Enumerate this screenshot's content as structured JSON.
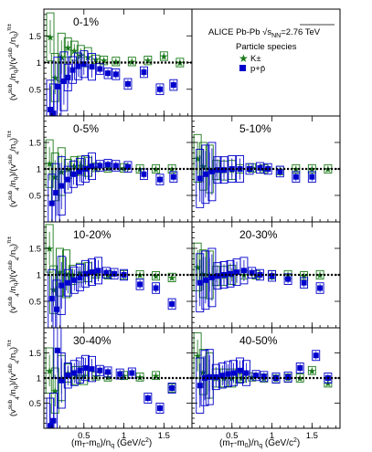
{
  "chart_data": {
    "type": "scatter",
    "figure_note": "ALICE Pb-Pb",
    "energy_label": "√s",
    "energy_sub": "NN",
    "energy_value": "=2.76 TeV",
    "legend_title": "Particle species",
    "series_names": [
      "K±",
      "p+p̄"
    ],
    "series_colors": {
      "kaon": "#1a7a1a",
      "proton": "#0000cc"
    },
    "xlabel": "(m_T-m_0)/n_q (GeV/c^2)",
    "xlabel_parts": {
      "a": "(m",
      "b": "T",
      "c": "-m",
      "d": "0",
      "e": ")/n",
      "f": "q",
      "g": " (GeV/c",
      "h": "2",
      "i": ")"
    },
    "ylabel": "(v4sub/nq)/(v4sub/nq)π±",
    "ylabel_parts": {
      "a": "(v",
      "b": "sub",
      "c": "4",
      "d": "/n",
      "e": "q",
      "f": ")/(v",
      "g": "sub",
      "h": "4",
      "i": "/n",
      "j": "q",
      "k": ")",
      "l": "π±"
    },
    "xlim": [
      0,
      1.85
    ],
    "ylim": [
      0,
      2.0
    ],
    "x_ticks": [
      0.5,
      1,
      1.5
    ],
    "x_tick_labels": [
      "0.5",
      "1",
      "1.5"
    ],
    "y_ticks": [
      0.5,
      1,
      1.5
    ],
    "y_tick_labels": [
      "0.5",
      "1",
      "1.5"
    ],
    "reference_line": 1,
    "panels": [
      {
        "label": "0-1%",
        "kaon": [
          [
            0.08,
            1.48
          ],
          [
            0.14,
            0.72
          ],
          [
            0.22,
            1.1
          ],
          [
            0.3,
            1.28
          ],
          [
            0.38,
            1.22
          ],
          [
            0.46,
            1.14
          ],
          [
            0.55,
            1.1
          ],
          [
            0.65,
            1.06
          ],
          [
            0.75,
            1.04
          ],
          [
            0.9,
            1.02
          ],
          [
            1.1,
            1.02
          ],
          [
            1.3,
            1.04
          ],
          [
            1.5,
            1.12
          ],
          [
            1.7,
            1.0
          ]
        ],
        "proton": [
          [
            0.08,
            0.12
          ],
          [
            0.12,
            0.05
          ],
          [
            0.17,
            0.55
          ],
          [
            0.25,
            0.65
          ],
          [
            0.3,
            0.72
          ],
          [
            0.36,
            0.86
          ],
          [
            0.43,
            0.93
          ],
          [
            0.5,
            0.97
          ],
          [
            0.6,
            0.92
          ],
          [
            0.7,
            0.88
          ],
          [
            0.8,
            0.8
          ],
          [
            0.9,
            0.78
          ],
          [
            1.05,
            0.6
          ],
          [
            1.25,
            0.82
          ],
          [
            1.45,
            0.5
          ],
          [
            1.62,
            0.58
          ]
        ]
      },
      {
        "label": "0-5%",
        "kaon": [
          [
            0.07,
            1.1
          ],
          [
            0.14,
            0.85
          ],
          [
            0.22,
            0.95
          ],
          [
            0.3,
            1.0
          ],
          [
            0.38,
            1.05
          ],
          [
            0.46,
            1.06
          ],
          [
            0.55,
            1.04
          ],
          [
            0.65,
            1.03
          ],
          [
            0.8,
            1.02
          ],
          [
            1.0,
            1.02
          ],
          [
            1.2,
            1.0
          ],
          [
            1.4,
            1.0
          ],
          [
            1.6,
            1.0
          ]
        ],
        "proton": [
          [
            0.1,
            0.35
          ],
          [
            0.15,
            0.55
          ],
          [
            0.22,
            0.68
          ],
          [
            0.3,
            0.8
          ],
          [
            0.37,
            0.9
          ],
          [
            0.45,
            0.95
          ],
          [
            0.52,
            1.0
          ],
          [
            0.6,
            1.05
          ],
          [
            0.7,
            1.06
          ],
          [
            0.8,
            1.08
          ],
          [
            0.9,
            1.06
          ],
          [
            1.05,
            1.04
          ],
          [
            1.25,
            0.9
          ],
          [
            1.45,
            0.8
          ],
          [
            1.62,
            0.85
          ]
        ]
      },
      {
        "label": "5-10%",
        "kaon": [
          [
            0.07,
            1.2
          ],
          [
            0.14,
            1.05
          ],
          [
            0.22,
            1.0
          ],
          [
            0.3,
            0.98
          ],
          [
            0.4,
            0.97
          ],
          [
            0.5,
            0.98
          ],
          [
            0.6,
            1.0
          ],
          [
            0.75,
            1.02
          ],
          [
            0.9,
            1.0
          ],
          [
            1.1,
            0.97
          ],
          [
            1.3,
            1.0
          ],
          [
            1.5,
            1.0
          ],
          [
            1.7,
            1.0
          ]
        ],
        "proton": [
          [
            0.1,
            0.82
          ],
          [
            0.17,
            0.9
          ],
          [
            0.25,
            0.95
          ],
          [
            0.32,
            0.98
          ],
          [
            0.4,
            0.98
          ],
          [
            0.5,
            1.0
          ],
          [
            0.6,
            1.0
          ],
          [
            0.72,
            1.0
          ],
          [
            0.85,
            1.02
          ],
          [
            0.95,
            1.0
          ],
          [
            1.1,
            0.95
          ],
          [
            1.3,
            0.85
          ],
          [
            1.5,
            0.85
          ]
        ]
      },
      {
        "label": "10-20%",
        "kaon": [
          [
            0.07,
            1.5
          ],
          [
            0.12,
            0.72
          ],
          [
            0.2,
            1.05
          ],
          [
            0.28,
            1.02
          ],
          [
            0.36,
            1.0
          ],
          [
            0.45,
            1.04
          ],
          [
            0.55,
            1.05
          ],
          [
            0.65,
            1.02
          ],
          [
            0.8,
            1.0
          ],
          [
            1.0,
            1.0
          ],
          [
            1.2,
            1.0
          ],
          [
            1.4,
            0.98
          ],
          [
            1.6,
            0.95
          ]
        ],
        "proton": [
          [
            0.1,
            0.55
          ],
          [
            0.16,
            0.35
          ],
          [
            0.22,
            0.8
          ],
          [
            0.3,
            0.85
          ],
          [
            0.38,
            0.9
          ],
          [
            0.45,
            0.95
          ],
          [
            0.52,
            1.02
          ],
          [
            0.6,
            1.05
          ],
          [
            0.68,
            1.08
          ],
          [
            0.78,
            1.04
          ],
          [
            0.88,
            1.02
          ],
          [
            1.0,
            1.0
          ],
          [
            1.2,
            0.82
          ],
          [
            1.4,
            0.75
          ],
          [
            1.6,
            0.45
          ]
        ]
      },
      {
        "label": "20-30%",
        "kaon": [
          [
            0.07,
            1.15
          ],
          [
            0.14,
            1.02
          ],
          [
            0.22,
            1.0
          ],
          [
            0.3,
            0.98
          ],
          [
            0.4,
            0.98
          ],
          [
            0.5,
            1.0
          ],
          [
            0.65,
            1.0
          ],
          [
            0.8,
            1.0
          ],
          [
            1.0,
            1.0
          ],
          [
            1.2,
            1.0
          ],
          [
            1.4,
            0.98
          ],
          [
            1.6,
            1.0
          ]
        ],
        "proton": [
          [
            0.1,
            0.85
          ],
          [
            0.17,
            0.9
          ],
          [
            0.25,
            0.95
          ],
          [
            0.32,
            0.98
          ],
          [
            0.4,
            1.0
          ],
          [
            0.48,
            1.02
          ],
          [
            0.56,
            1.05
          ],
          [
            0.65,
            1.08
          ],
          [
            0.75,
            1.04
          ],
          [
            0.85,
            1.0
          ],
          [
            1.0,
            0.98
          ],
          [
            1.2,
            0.92
          ],
          [
            1.4,
            0.85
          ],
          [
            1.6,
            0.75
          ]
        ]
      },
      {
        "label": "30-40%",
        "kaon": [
          [
            0.07,
            1.15
          ],
          [
            0.14,
            0.75
          ],
          [
            0.22,
            1.0
          ],
          [
            0.3,
            1.1
          ],
          [
            0.4,
            1.05
          ],
          [
            0.5,
            1.05
          ],
          [
            0.65,
            1.04
          ],
          [
            0.8,
            1.02
          ],
          [
            1.0,
            1.05
          ],
          [
            1.2,
            1.02
          ],
          [
            1.4,
            1.05
          ],
          [
            1.6,
            0.8
          ]
        ],
        "proton": [
          [
            0.08,
            0.05
          ],
          [
            0.12,
            0.15
          ],
          [
            0.17,
            1.55
          ],
          [
            0.22,
            0.95
          ],
          [
            0.3,
            1.05
          ],
          [
            0.38,
            1.1
          ],
          [
            0.45,
            1.15
          ],
          [
            0.52,
            1.2
          ],
          [
            0.6,
            1.18
          ],
          [
            0.7,
            1.15
          ],
          [
            0.8,
            1.12
          ],
          [
            0.95,
            1.08
          ],
          [
            1.1,
            1.1
          ],
          [
            1.3,
            0.6
          ],
          [
            1.45,
            0.4
          ],
          [
            1.6,
            0.8
          ]
        ]
      },
      {
        "label": "40-50%",
        "kaon": [
          [
            0.07,
            1.45
          ],
          [
            0.14,
            1.12
          ],
          [
            0.22,
            1.05
          ],
          [
            0.3,
            1.0
          ],
          [
            0.4,
            1.0
          ],
          [
            0.5,
            1.0
          ],
          [
            0.62,
            1.0
          ],
          [
            0.75,
            1.02
          ],
          [
            0.9,
            1.0
          ],
          [
            1.05,
            0.98
          ],
          [
            1.2,
            1.0
          ],
          [
            1.35,
            1.0
          ],
          [
            1.5,
            1.15
          ],
          [
            1.7,
            0.9
          ]
        ],
        "proton": [
          [
            0.1,
            0.85
          ],
          [
            0.16,
            1.0
          ],
          [
            0.22,
            1.02
          ],
          [
            0.3,
            1.02
          ],
          [
            0.38,
            1.05
          ],
          [
            0.45,
            1.08
          ],
          [
            0.52,
            1.1
          ],
          [
            0.6,
            1.15
          ],
          [
            0.68,
            1.1
          ],
          [
            0.8,
            1.05
          ],
          [
            0.9,
            1.03
          ],
          [
            1.05,
            1.0
          ],
          [
            1.2,
            1.02
          ],
          [
            1.35,
            1.2
          ],
          [
            1.55,
            1.45
          ],
          [
            1.7,
            1.0
          ]
        ]
      }
    ]
  }
}
